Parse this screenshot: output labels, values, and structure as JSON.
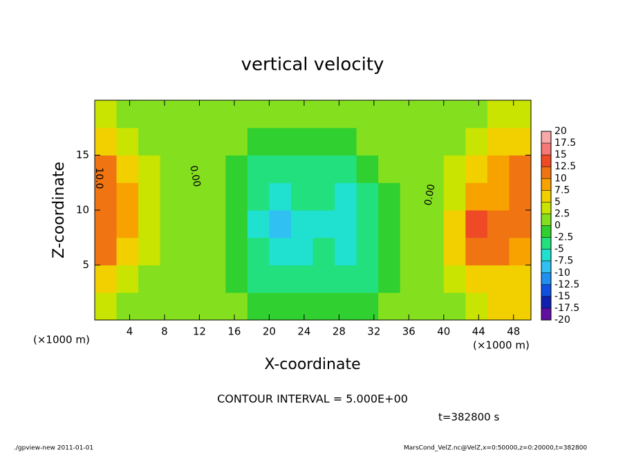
{
  "chart_data": {
    "type": "contour",
    "title": "vertical velocity",
    "x_label": "X-coordinate",
    "y_label": "Z-coordinate",
    "unit_labels": [
      "(×1000 m)",
      "(×1000 m)"
    ],
    "contour_interval": "CONTOUR INTERVAL = 5.000E+00",
    "time_label": "t=382800 s",
    "footer_left": "./gpview-new   2011-01-01",
    "footer_right": "MarsCond_VelZ.nc@VelZ,x=0:50000,z=0:20000,t=382800",
    "contour_labels": [
      "10.0",
      "0.00",
      "0.00"
    ],
    "xlim": [
      0,
      50
    ],
    "ylim": [
      0,
      20
    ],
    "xticks": [
      4,
      8,
      12,
      16,
      20,
      24,
      28,
      32,
      36,
      40,
      44,
      48
    ],
    "yticks": [
      5,
      10,
      15
    ],
    "levels": [
      20,
      17.5,
      15,
      12.5,
      10,
      7.5,
      5,
      2.5,
      0,
      -2.5,
      -5,
      -7.5,
      -10,
      -12.5,
      -15,
      -17.5,
      -20
    ],
    "level_colors": [
      "#f8a8a8",
      "#f47878",
      "#ee4a26",
      "#f07412",
      "#f8a200",
      "#f2d000",
      "#c8e400",
      "#84e01e",
      "#30d030",
      "#22e07e",
      "#20e0d0",
      "#30c0f2",
      "#2090f0",
      "#1050e0",
      "#1020b0",
      "#6010a0"
    ],
    "x": [
      1.25,
      3.75,
      6.25,
      8.75,
      11.25,
      13.75,
      16.25,
      18.75,
      21.25,
      23.75,
      26.25,
      28.75,
      31.25,
      33.75,
      36.25,
      38.75,
      41.25,
      43.75,
      46.25,
      48.75
    ],
    "z": [
      1.25,
      3.75,
      6.25,
      8.75,
      11.25,
      13.75,
      16.25,
      18.75
    ],
    "values": [
      [
        4,
        2,
        1,
        1,
        0,
        0,
        0,
        -1,
        -2,
        -2,
        -1,
        -1,
        -1,
        0,
        1,
        1,
        2,
        3,
        5,
        6
      ],
      [
        6,
        4,
        2,
        1,
        0,
        0,
        -1,
        -3,
        -5,
        -5,
        -4,
        -4,
        -3,
        -1,
        0,
        1,
        3,
        6,
        7,
        7
      ],
      [
        10,
        7,
        4,
        2,
        0,
        0,
        -1,
        -5,
        -7,
        -6,
        -5,
        -6,
        -5,
        -1,
        0,
        1,
        5,
        12,
        11,
        9
      ],
      [
        11,
        8,
        4,
        2,
        0,
        0,
        -2,
        -6,
        -9,
        -6,
        -6,
        -7,
        -5,
        -1,
        0,
        1,
        5,
        13,
        10,
        10
      ],
      [
        11,
        8,
        4,
        1,
        0,
        0,
        -2,
        -5,
        -7,
        -5,
        -5,
        -6,
        -4,
        -1,
        0,
        1,
        4,
        8,
        9,
        11
      ],
      [
        10,
        7,
        3,
        1,
        0,
        0,
        -1,
        -4,
        -5,
        -4,
        -4,
        -3,
        -2,
        0,
        0,
        1,
        3,
        5,
        8,
        10
      ],
      [
        6,
        4,
        2,
        1,
        0,
        0,
        0,
        -1,
        -2,
        -2,
        -1,
        -1,
        0,
        0,
        0,
        1,
        2,
        3,
        5,
        6
      ],
      [
        3,
        2,
        1,
        1,
        0,
        0,
        0,
        0,
        0,
        0,
        0,
        0,
        0,
        0,
        0,
        1,
        1,
        2,
        3,
        3
      ]
    ]
  }
}
